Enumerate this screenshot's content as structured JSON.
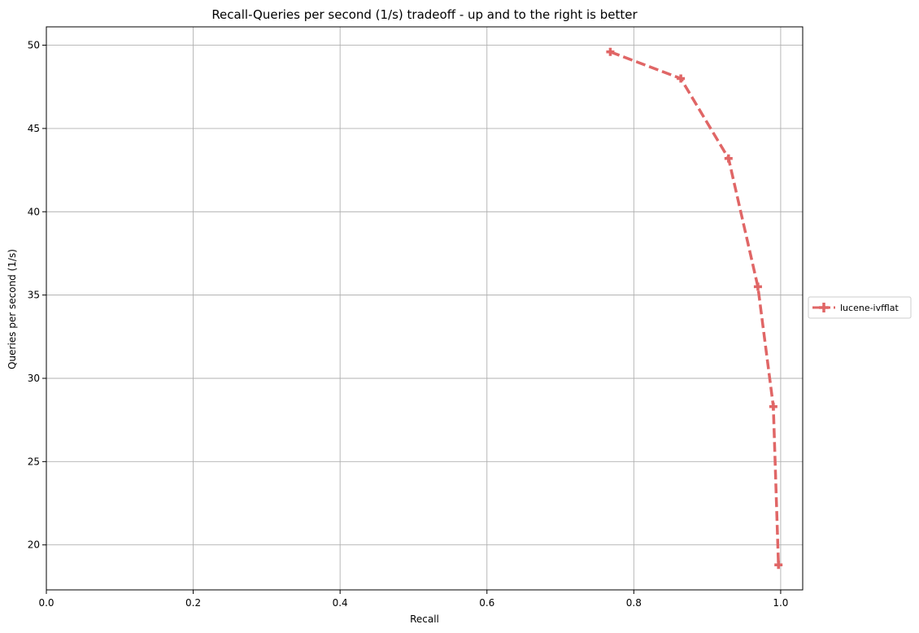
{
  "chart_data": {
    "type": "line",
    "title": "Recall-Queries per second (1/s) tradeoff - up and to the right is better",
    "xlabel": "Recall",
    "ylabel": "Queries per second (1/s)",
    "xlim": [
      0.0,
      1.03
    ],
    "ylim": [
      17.3,
      51.1
    ],
    "xticks": [
      0.0,
      0.2,
      0.4,
      0.6,
      0.8,
      1.0
    ],
    "xtick_labels": [
      "0.0",
      "0.2",
      "0.4",
      "0.6",
      "0.8",
      "1.0"
    ],
    "yticks": [
      20,
      25,
      30,
      35,
      40,
      45,
      50
    ],
    "ytick_labels": [
      "20",
      "25",
      "30",
      "35",
      "40",
      "45",
      "50"
    ],
    "grid": true,
    "legend_position": "outside-right",
    "series": [
      {
        "name": "lucene-ivfflat",
        "color": "#e06666",
        "line_style": "dashed",
        "marker": "plus",
        "x": [
          0.768,
          0.864,
          0.929,
          0.969,
          0.99,
          0.997
        ],
        "y": [
          49.6,
          48.0,
          43.2,
          35.5,
          28.3,
          18.8
        ]
      }
    ]
  }
}
